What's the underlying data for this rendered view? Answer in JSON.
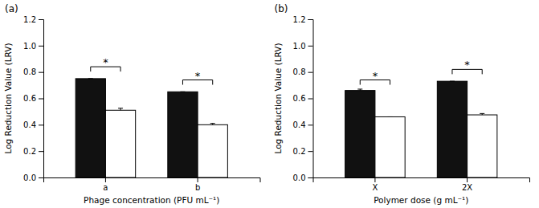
{
  "chart_data": [
    {
      "type": "bar",
      "title": "(a)",
      "xlabel": "Phage concentration (PFU mL⁻¹)",
      "ylabel": "Log Reduction Value (LRV)",
      "categories": [
        "a",
        "b"
      ],
      "series": [
        {
          "color": "#111111",
          "values": [
            0.75,
            0.65
          ],
          "errors": [
            0.0,
            0.0
          ]
        },
        {
          "color": "#ffffff",
          "values": [
            0.51,
            0.4
          ],
          "errors": [
            0.015,
            0.01
          ]
        }
      ],
      "ylim": [
        0.0,
        1.2
      ],
      "yticks": [
        {
          "value": 0.0,
          "label": "0.0"
        },
        0.2,
        0.4,
        0.6,
        0.8,
        {
          "value": 1.0,
          "label": "1.0"
        },
        1.2
      ],
      "annotations": [
        {
          "category": "a",
          "y": 0.84,
          "label": "*"
        },
        {
          "category": "b",
          "y": 0.74,
          "label": "*"
        }
      ],
      "grid": false
    },
    {
      "type": "bar",
      "title": "(b)",
      "xlabel": "Polymer dose (g mL⁻¹)",
      "ylabel": "Log Reduction Value (LRV)",
      "categories": [
        "X",
        "2X"
      ],
      "series": [
        {
          "color": "#111111",
          "values": [
            0.66,
            0.73
          ],
          "errors": [
            0.01,
            0.0
          ]
        },
        {
          "color": "#ffffff",
          "values": [
            0.46,
            0.475
          ],
          "errors": [
            0.0,
            0.01
          ]
        }
      ],
      "ylim": [
        0.0,
        1.2
      ],
      "yticks": [
        {
          "value": 0.0,
          "label": "0.0"
        },
        0.2,
        0.4,
        0.6,
        0.8,
        {
          "value": 1.0,
          "label": "1.0"
        },
        1.2
      ],
      "annotations": [
        {
          "category": "X",
          "y": 0.74,
          "label": "*"
        },
        {
          "category": "2X",
          "y": 0.82,
          "label": "*"
        }
      ],
      "grid": false
    }
  ]
}
